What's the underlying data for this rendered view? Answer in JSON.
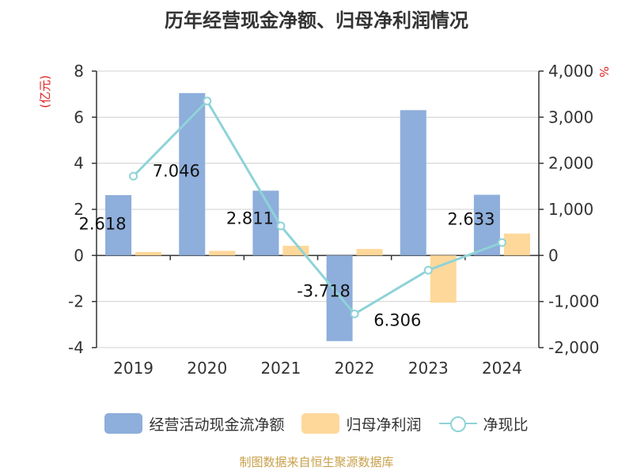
{
  "chart_data": {
    "type": "bar+line",
    "title": "历年经营现金净额、归母净利润情况",
    "categories": [
      "2019",
      "2020",
      "2021",
      "2022",
      "2023",
      "2024"
    ],
    "left_axis": {
      "unit_label": "(亿元)",
      "range": [
        -4,
        8
      ],
      "ticks": [
        "8",
        "6",
        "4",
        "2",
        "0",
        "-2",
        "-4"
      ],
      "tick_values": [
        8,
        6,
        4,
        2,
        0,
        -2,
        -4
      ]
    },
    "right_axis": {
      "unit_label": "%",
      "range": [
        -2000,
        4000
      ],
      "ticks": [
        "4,000",
        "3,000",
        "2,000",
        "1,000",
        "0",
        "-1,000",
        "-2,000"
      ],
      "tick_values": [
        4000,
        3000,
        2000,
        1000,
        0,
        -1000,
        -2000
      ]
    },
    "series": [
      {
        "name": "经营活动现金流净额",
        "type": "bar",
        "axis": "left",
        "color": "#8eaedb",
        "values": [
          2.618,
          7.046,
          2.811,
          -3.718,
          6.306,
          2.633
        ],
        "labels": [
          "2.618",
          "7.046",
          "2.811",
          "-3.718",
          "6.306",
          "2.633"
        ]
      },
      {
        "name": "归母净利润",
        "type": "bar",
        "axis": "left",
        "color": "#fed89a",
        "values": [
          0.15,
          0.2,
          0.42,
          0.28,
          -2.05,
          0.95
        ]
      },
      {
        "name": "净现比",
        "type": "line",
        "axis": "right",
        "color": "#8ed3d8",
        "values": [
          1720,
          3350,
          640,
          -1270,
          -320,
          280
        ]
      }
    ]
  },
  "source": "制图数据来自恒生聚源数据库"
}
